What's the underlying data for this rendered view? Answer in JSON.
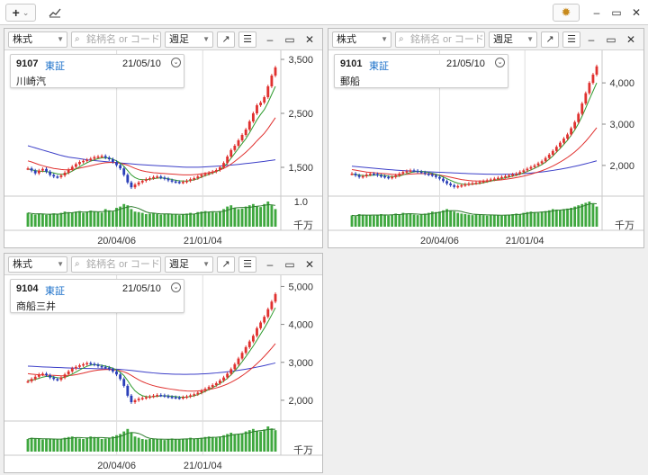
{
  "toolbar": {
    "add_label": "+",
    "add_caret": "⌄",
    "chart_icon": "chart-line-icon",
    "settings_icon": "gear-icon",
    "minimize": "–",
    "maximize": "▭",
    "close": "✕"
  },
  "panels": [
    {
      "market_type": "株式",
      "search_placeholder": "銘柄名 or コード",
      "period": "週足",
      "code": "9107",
      "exchange": "東証",
      "date": "21/05/10",
      "name": "川崎汽",
      "y_ticks": [
        "3,500",
        "2,500",
        "1,500"
      ],
      "vol_tick": "1.0",
      "vol_unit": "千万",
      "x_ticks": [
        "20/04/06",
        "21/01/04"
      ],
      "chart_data": {
        "type": "line",
        "ylim": [
          1000,
          3600
        ],
        "y_ticks": [
          3500,
          2500,
          1500
        ],
        "price": [
          1480,
          1440,
          1390,
          1440,
          1470,
          1420,
          1360,
          1330,
          1320,
          1350,
          1400,
          1460,
          1510,
          1560,
          1600,
          1620,
          1640,
          1660,
          1690,
          1700,
          1710,
          1680,
          1650,
          1600,
          1540,
          1480,
          1360,
          1220,
          1130,
          1180,
          1220,
          1250,
          1280,
          1300,
          1320,
          1330,
          1310,
          1290,
          1260,
          1240,
          1230,
          1220,
          1230,
          1250,
          1280,
          1300,
          1330,
          1360,
          1380,
          1400,
          1420,
          1450,
          1500,
          1580,
          1700,
          1820,
          1900,
          2000,
          2100,
          2200,
          2350,
          2500,
          2650,
          2700,
          2800,
          3000,
          3200,
          3350
        ],
        "ma_fast": [
          1470,
          1455,
          1440,
          1430,
          1425,
          1420,
          1410,
          1395,
          1380,
          1370,
          1375,
          1395,
          1430,
          1470,
          1510,
          1550,
          1585,
          1615,
          1640,
          1660,
          1675,
          1680,
          1670,
          1650,
          1620,
          1580,
          1520,
          1440,
          1360,
          1310,
          1280,
          1270,
          1270,
          1280,
          1290,
          1300,
          1305,
          1300,
          1290,
          1275,
          1260,
          1250,
          1245,
          1245,
          1255,
          1270,
          1290,
          1320,
          1345,
          1370,
          1395,
          1420,
          1455,
          1510,
          1580,
          1670,
          1760,
          1850,
          1940,
          2030,
          2140,
          2260,
          2380,
          2480,
          2570,
          2700,
          2850,
          3000
        ],
        "ma_mid": [
          1620,
          1600,
          1575,
          1550,
          1530,
          1510,
          1495,
          1480,
          1470,
          1460,
          1455,
          1455,
          1460,
          1470,
          1485,
          1500,
          1515,
          1530,
          1545,
          1560,
          1575,
          1585,
          1590,
          1590,
          1585,
          1575,
          1560,
          1540,
          1510,
          1480,
          1455,
          1435,
          1420,
          1410,
          1400,
          1395,
          1390,
          1385,
          1380,
          1375,
          1370,
          1365,
          1360,
          1360,
          1360,
          1365,
          1370,
          1380,
          1390,
          1400,
          1415,
          1430,
          1450,
          1480,
          1515,
          1560,
          1610,
          1665,
          1720,
          1780,
          1845,
          1915,
          1990,
          2060,
          2130,
          2220,
          2320,
          2420
        ],
        "ma_slow": [
          1900,
          1880,
          1860,
          1840,
          1820,
          1800,
          1780,
          1760,
          1740,
          1720,
          1705,
          1690,
          1680,
          1670,
          1660,
          1650,
          1640,
          1632,
          1625,
          1618,
          1612,
          1606,
          1600,
          1594,
          1588,
          1582,
          1576,
          1570,
          1564,
          1558,
          1553,
          1548,
          1544,
          1540,
          1536,
          1532,
          1528,
          1524,
          1520,
          1516,
          1512,
          1508,
          1505,
          1503,
          1502,
          1502,
          1503,
          1505,
          1508,
          1512,
          1516,
          1520,
          1525,
          1530,
          1536,
          1542,
          1548,
          1555,
          1562,
          1570,
          1578,
          1586,
          1594,
          1602,
          1610,
          1620,
          1630,
          1640
        ],
        "volume": [
          0.55,
          0.5,
          0.48,
          0.52,
          0.5,
          0.47,
          0.5,
          0.53,
          0.5,
          0.55,
          0.6,
          0.58,
          0.56,
          0.6,
          0.62,
          0.55,
          0.6,
          0.64,
          0.6,
          0.58,
          0.56,
          0.7,
          0.65,
          0.6,
          0.75,
          0.8,
          0.9,
          0.85,
          0.7,
          0.6,
          0.58,
          0.55,
          0.5,
          0.52,
          0.55,
          0.5,
          0.48,
          0.5,
          0.52,
          0.5,
          0.48,
          0.46,
          0.5,
          0.52,
          0.55,
          0.5,
          0.58,
          0.6,
          0.62,
          0.6,
          0.58,
          0.56,
          0.62,
          0.7,
          0.8,
          0.85,
          0.75,
          0.7,
          0.72,
          0.8,
          0.85,
          0.9,
          0.8,
          0.78,
          0.9,
          1.0,
          0.85,
          0.7
        ]
      }
    },
    {
      "market_type": "株式",
      "search_placeholder": "銘柄名 or コード",
      "period": "週足",
      "code": "9101",
      "exchange": "東証",
      "date": "21/05/10",
      "name": "郵船",
      "y_ticks": [
        "4,000",
        "3,000",
        "2,000"
      ],
      "vol_tick": "",
      "vol_unit": "千万",
      "x_ticks": [
        "20/04/06",
        "21/01/04"
      ],
      "chart_data": {
        "type": "line",
        "ylim": [
          1300,
          4700
        ],
        "y_ticks": [
          4000,
          3000,
          2000
        ],
        "price": [
          1800,
          1760,
          1720,
          1740,
          1780,
          1800,
          1790,
          1760,
          1740,
          1720,
          1700,
          1720,
          1760,
          1800,
          1840,
          1860,
          1880,
          1870,
          1850,
          1830,
          1800,
          1780,
          1760,
          1720,
          1680,
          1620,
          1560,
          1520,
          1480,
          1500,
          1520,
          1540,
          1560,
          1570,
          1580,
          1600,
          1620,
          1640,
          1660,
          1680,
          1700,
          1720,
          1740,
          1760,
          1780,
          1800,
          1840,
          1880,
          1920,
          1960,
          2000,
          2050,
          2100,
          2180,
          2260,
          2350,
          2450,
          2550,
          2650,
          2750,
          2900,
          3050,
          3250,
          3500,
          3750,
          4000,
          4200,
          4400
        ],
        "ma_fast": [
          1790,
          1780,
          1765,
          1755,
          1750,
          1755,
          1765,
          1770,
          1765,
          1755,
          1740,
          1730,
          1730,
          1745,
          1770,
          1800,
          1825,
          1845,
          1855,
          1855,
          1845,
          1830,
          1810,
          1785,
          1755,
          1720,
          1680,
          1640,
          1600,
          1570,
          1550,
          1540,
          1540,
          1545,
          1555,
          1565,
          1580,
          1600,
          1620,
          1640,
          1660,
          1680,
          1700,
          1720,
          1740,
          1760,
          1790,
          1820,
          1855,
          1890,
          1930,
          1975,
          2020,
          2080,
          2150,
          2230,
          2320,
          2410,
          2510,
          2610,
          2730,
          2860,
          3010,
          3190,
          3390,
          3600,
          3800,
          4000
        ],
        "ma_mid": [
          1900,
          1885,
          1870,
          1855,
          1840,
          1830,
          1822,
          1815,
          1808,
          1800,
          1792,
          1785,
          1780,
          1778,
          1780,
          1784,
          1790,
          1796,
          1800,
          1802,
          1800,
          1795,
          1787,
          1777,
          1765,
          1750,
          1733,
          1715,
          1695,
          1675,
          1658,
          1645,
          1635,
          1628,
          1624,
          1622,
          1622,
          1624,
          1628,
          1634,
          1642,
          1652,
          1664,
          1676,
          1690,
          1705,
          1722,
          1742,
          1764,
          1788,
          1814,
          1842,
          1872,
          1906,
          1944,
          1986,
          2032,
          2082,
          2136,
          2194,
          2258,
          2328,
          2406,
          2492,
          2586,
          2690,
          2800,
          2915
        ],
        "ma_slow": [
          1980,
          1972,
          1964,
          1956,
          1948,
          1940,
          1932,
          1924,
          1916,
          1908,
          1900,
          1893,
          1886,
          1880,
          1875,
          1870,
          1866,
          1862,
          1858,
          1854,
          1850,
          1846,
          1842,
          1838,
          1834,
          1830,
          1826,
          1822,
          1818,
          1814,
          1810,
          1806,
          1802,
          1798,
          1795,
          1792,
          1790,
          1788,
          1787,
          1786,
          1786,
          1786,
          1787,
          1789,
          1791,
          1794,
          1798,
          1803,
          1809,
          1816,
          1824,
          1833,
          1843,
          1854,
          1866,
          1879,
          1893,
          1908,
          1924,
          1941,
          1959,
          1978,
          1998,
          2019,
          2041,
          2064,
          2088,
          2112
        ],
        "volume": [
          0.45,
          0.42,
          0.5,
          0.48,
          0.45,
          0.46,
          0.44,
          0.48,
          0.5,
          0.46,
          0.44,
          0.48,
          0.52,
          0.5,
          0.55,
          0.52,
          0.5,
          0.48,
          0.46,
          0.5,
          0.52,
          0.55,
          0.6,
          0.58,
          0.6,
          0.65,
          0.7,
          0.65,
          0.6,
          0.55,
          0.52,
          0.5,
          0.48,
          0.46,
          0.5,
          0.48,
          0.46,
          0.44,
          0.46,
          0.48,
          0.46,
          0.44,
          0.46,
          0.48,
          0.5,
          0.52,
          0.5,
          0.55,
          0.58,
          0.6,
          0.58,
          0.55,
          0.6,
          0.62,
          0.65,
          0.7,
          0.68,
          0.65,
          0.7,
          0.72,
          0.75,
          0.8,
          0.85,
          0.9,
          0.95,
          1.0,
          0.9,
          0.8
        ]
      }
    },
    {
      "market_type": "株式",
      "search_placeholder": "銘柄名 or コード",
      "period": "週足",
      "code": "9104",
      "exchange": "東証",
      "date": "21/05/10",
      "name": "商船三井",
      "y_ticks": [
        "5,000",
        "4,000",
        "3,000",
        "2,000"
      ],
      "vol_tick": "",
      "vol_unit": "千万",
      "x_ticks": [
        "20/04/06",
        "21/01/04"
      ],
      "chart_data": {
        "type": "line",
        "ylim": [
          1500,
          5200
        ],
        "y_ticks": [
          5000,
          4000,
          3000,
          2000
        ],
        "price": [
          2500,
          2560,
          2620,
          2680,
          2700,
          2660,
          2600,
          2560,
          2540,
          2600,
          2680,
          2760,
          2840,
          2880,
          2920,
          2950,
          2980,
          2960,
          2940,
          2900,
          2880,
          2860,
          2820,
          2760,
          2680,
          2560,
          2380,
          2120,
          1950,
          2000,
          2040,
          2060,
          2080,
          2100,
          2120,
          2140,
          2130,
          2110,
          2090,
          2080,
          2070,
          2060,
          2080,
          2100,
          2130,
          2160,
          2200,
          2250,
          2300,
          2350,
          2400,
          2450,
          2520,
          2600,
          2700,
          2820,
          2950,
          3100,
          3250,
          3400,
          3550,
          3700,
          3900,
          4050,
          4200,
          4400,
          4600,
          4800
        ],
        "ma_fast": [
          2520,
          2530,
          2550,
          2580,
          2610,
          2630,
          2630,
          2615,
          2595,
          2590,
          2605,
          2640,
          2690,
          2745,
          2800,
          2850,
          2895,
          2925,
          2940,
          2935,
          2920,
          2900,
          2875,
          2845,
          2800,
          2740,
          2650,
          2520,
          2370,
          2250,
          2170,
          2120,
          2095,
          2090,
          2095,
          2105,
          2115,
          2120,
          2115,
          2105,
          2095,
          2085,
          2080,
          2085,
          2100,
          2120,
          2150,
          2190,
          2235,
          2285,
          2335,
          2385,
          2440,
          2505,
          2580,
          2670,
          2775,
          2890,
          3015,
          3150,
          3290,
          3430,
          3585,
          3745,
          3900,
          4070,
          4250,
          4440
        ],
        "ma_mid": [
          2700,
          2690,
          2680,
          2670,
          2665,
          2662,
          2660,
          2656,
          2650,
          2645,
          2645,
          2650,
          2660,
          2675,
          2695,
          2715,
          2740,
          2762,
          2780,
          2795,
          2805,
          2810,
          2810,
          2805,
          2795,
          2778,
          2750,
          2710,
          2655,
          2595,
          2540,
          2490,
          2450,
          2415,
          2385,
          2360,
          2340,
          2322,
          2305,
          2290,
          2276,
          2262,
          2252,
          2245,
          2242,
          2242,
          2246,
          2254,
          2266,
          2282,
          2302,
          2326,
          2354,
          2388,
          2428,
          2474,
          2526,
          2584,
          2648,
          2718,
          2794,
          2876,
          2964,
          3058,
          3158,
          3264,
          3376,
          3494
        ],
        "ma_slow": [
          2900,
          2895,
          2890,
          2885,
          2880,
          2876,
          2872,
          2868,
          2864,
          2860,
          2856,
          2852,
          2849,
          2846,
          2843,
          2840,
          2838,
          2836,
          2834,
          2832,
          2830,
          2828,
          2825,
          2822,
          2818,
          2813,
          2806,
          2797,
          2786,
          2774,
          2762,
          2750,
          2739,
          2729,
          2720,
          2712,
          2705,
          2699,
          2694,
          2690,
          2687,
          2685,
          2684,
          2684,
          2685,
          2687,
          2690,
          2694,
          2699,
          2705,
          2712,
          2720,
          2729,
          2739,
          2750,
          2762,
          2775,
          2789,
          2804,
          2820,
          2837,
          2855,
          2874,
          2894,
          2915,
          2937,
          2960,
          2984
        ],
        "volume": [
          0.5,
          0.55,
          0.52,
          0.5,
          0.48,
          0.5,
          0.52,
          0.5,
          0.48,
          0.5,
          0.55,
          0.58,
          0.6,
          0.55,
          0.52,
          0.5,
          0.55,
          0.6,
          0.58,
          0.55,
          0.5,
          0.52,
          0.55,
          0.6,
          0.65,
          0.7,
          0.8,
          0.9,
          0.75,
          0.6,
          0.55,
          0.5,
          0.48,
          0.5,
          0.52,
          0.5,
          0.48,
          0.46,
          0.5,
          0.52,
          0.5,
          0.48,
          0.5,
          0.52,
          0.55,
          0.5,
          0.52,
          0.55,
          0.58,
          0.6,
          0.58,
          0.55,
          0.6,
          0.65,
          0.7,
          0.75,
          0.7,
          0.68,
          0.72,
          0.8,
          0.85,
          0.9,
          0.82,
          0.8,
          0.88,
          1.0,
          0.92,
          0.85
        ]
      }
    }
  ],
  "colors": {
    "up": "#e0312f",
    "down": "#2a3fb8",
    "ma_fast": "#2e9b2e",
    "ma_mid": "#e0312f",
    "ma_slow": "#3c3fc8",
    "volume": "#3fa83f",
    "grid": "#dddddd",
    "exchange": "#1a6fc9"
  }
}
